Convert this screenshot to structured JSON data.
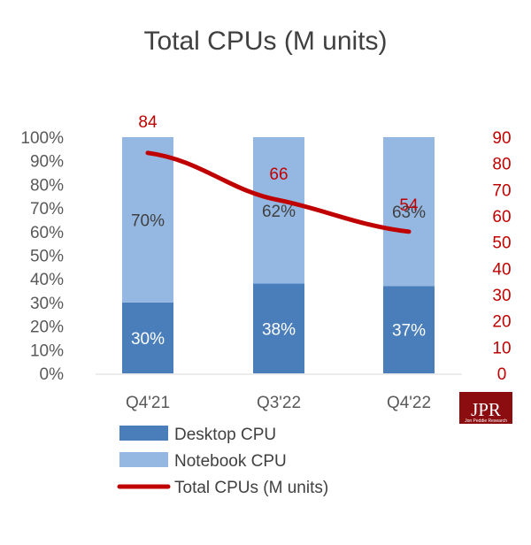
{
  "chart_data": {
    "type": "bar",
    "stacked": true,
    "title": "Total CPUs (M units)",
    "categories": [
      "Q4'21",
      "Q3'22",
      "Q4'22"
    ],
    "series": [
      {
        "name": "Desktop CPU",
        "values": [
          30,
          38,
          37
        ],
        "labels": [
          "30%",
          "38%",
          "37%"
        ],
        "color": "#4a7ebb"
      },
      {
        "name": "Notebook CPU",
        "values": [
          70,
          62,
          63
        ],
        "labels": [
          "70%",
          "62%",
          "63%"
        ],
        "color": "#95b8e3"
      }
    ],
    "line_series": {
      "name": "Total CPUs (M units)",
      "values": [
        84,
        66,
        54
      ],
      "labels": [
        "84",
        "66",
        "54"
      ],
      "color": "#c00000",
      "axis": "right"
    },
    "y_left": {
      "ylim": [
        0,
        100
      ],
      "ticks": [
        "0%",
        "10%",
        "20%",
        "30%",
        "40%",
        "50%",
        "60%",
        "70%",
        "80%",
        "90%",
        "100%"
      ]
    },
    "y_right": {
      "ylim": [
        0,
        90
      ],
      "ticks": [
        "0",
        "10",
        "20",
        "30",
        "40",
        "50",
        "60",
        "70",
        "80",
        "90"
      ],
      "color": "#c00000"
    },
    "grid": false,
    "legend_position": "bottom"
  },
  "logo": {
    "text": "JPR",
    "subtext": "Jon Peddie Research"
  }
}
